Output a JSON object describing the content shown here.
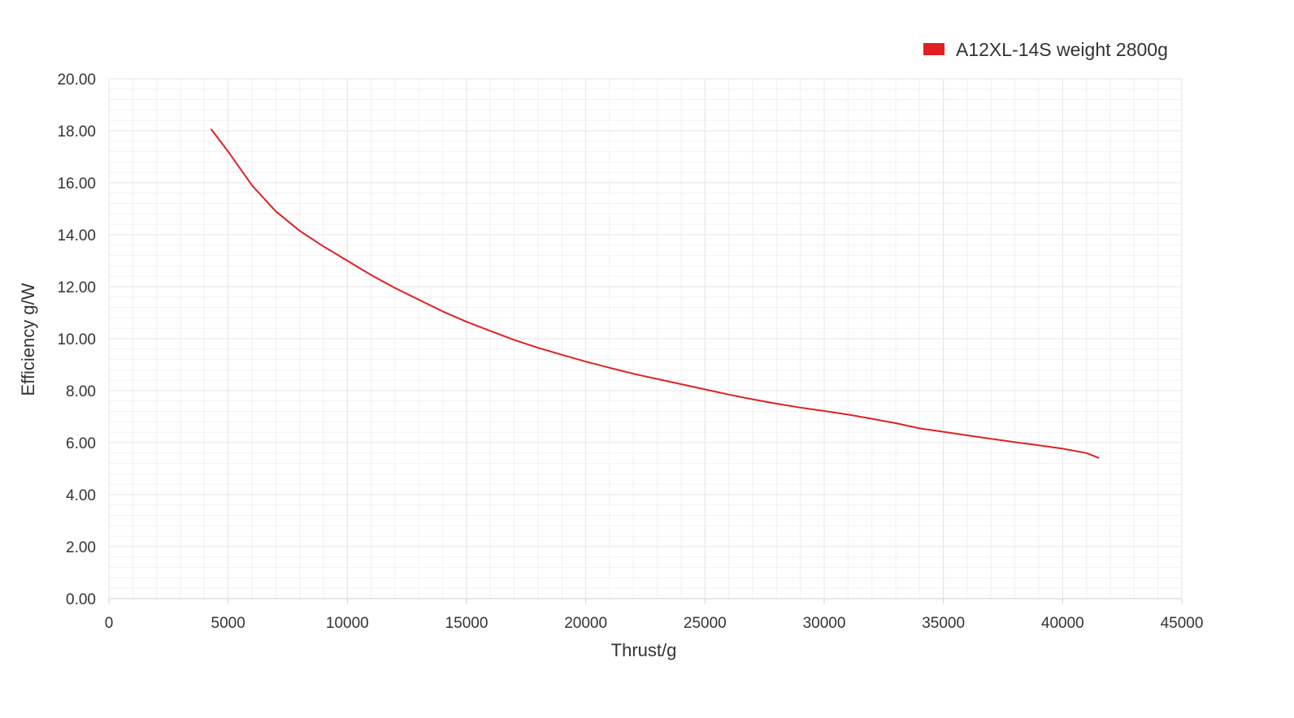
{
  "chart_data": {
    "type": "line",
    "xlabel": "Thrust/g",
    "ylabel": "Efficiency g/W",
    "xlim": [
      0,
      45000
    ],
    "ylim": [
      0,
      20
    ],
    "x_ticks": [
      "0",
      "5000",
      "10000",
      "15000",
      "20000",
      "25000",
      "30000",
      "35000",
      "40000",
      "45000"
    ],
    "y_ticks": [
      "0.00",
      "2.00",
      "4.00",
      "6.00",
      "8.00",
      "10.00",
      "12.00",
      "14.00",
      "16.00",
      "18.00",
      "20.00"
    ],
    "grid": true,
    "legend_position": "top-right",
    "series": [
      {
        "name": "A12XL-14S weight 2800g",
        "color": "#e02020",
        "points": [
          [
            4300,
            18.05
          ],
          [
            5000,
            17.2
          ],
          [
            6000,
            15.9
          ],
          [
            7000,
            14.9
          ],
          [
            8000,
            14.15
          ],
          [
            9000,
            13.55
          ],
          [
            10000,
            13.0
          ],
          [
            11000,
            12.45
          ],
          [
            12000,
            11.95
          ],
          [
            13000,
            11.5
          ],
          [
            14000,
            11.05
          ],
          [
            15000,
            10.65
          ],
          [
            16000,
            10.3
          ],
          [
            17000,
            9.95
          ],
          [
            18000,
            9.65
          ],
          [
            19000,
            9.38
          ],
          [
            20000,
            9.12
          ],
          [
            21000,
            8.88
          ],
          [
            22000,
            8.65
          ],
          [
            23000,
            8.45
          ],
          [
            24000,
            8.25
          ],
          [
            25000,
            8.05
          ],
          [
            26000,
            7.85
          ],
          [
            27000,
            7.67
          ],
          [
            28000,
            7.5
          ],
          [
            29000,
            7.35
          ],
          [
            30000,
            7.22
          ],
          [
            31000,
            7.08
          ],
          [
            32000,
            6.92
          ],
          [
            33000,
            6.75
          ],
          [
            34000,
            6.55
          ],
          [
            35000,
            6.42
          ],
          [
            36000,
            6.28
          ],
          [
            37000,
            6.15
          ],
          [
            38000,
            6.02
          ],
          [
            39000,
            5.9
          ],
          [
            40000,
            5.77
          ],
          [
            41000,
            5.6
          ],
          [
            41500,
            5.42
          ]
        ]
      }
    ]
  }
}
